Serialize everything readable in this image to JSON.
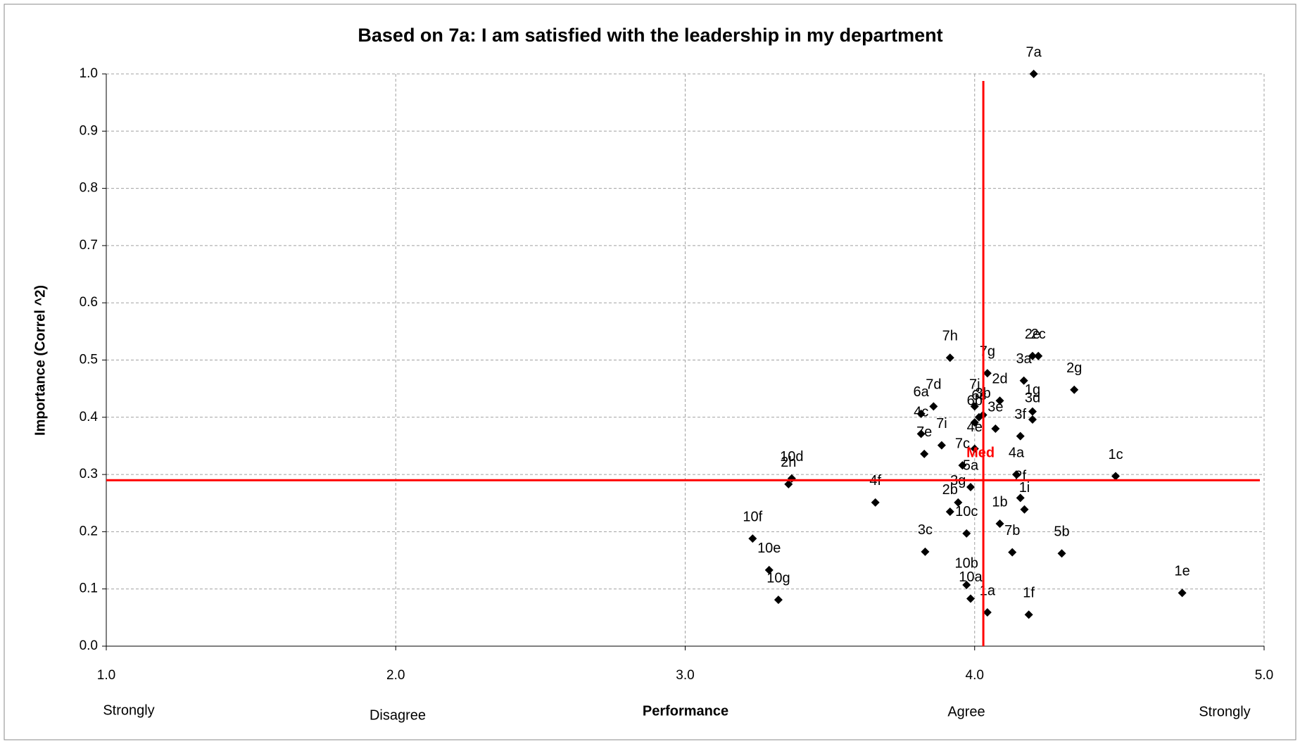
{
  "chart_data": {
    "type": "scatter",
    "title": "Based on 7a: I am satisfied with the leadership in my department",
    "y_label": "Importance (Correl ^2)",
    "x_label": "Performance",
    "x_scale_labels": [
      "Strongly",
      "Disagree",
      "Agree",
      "Strongly"
    ],
    "labels": [
      "7a",
      "7h",
      "2e",
      "2c",
      "7g",
      "3a",
      "2g",
      "7d",
      "6a",
      "7j",
      "2d",
      "1g",
      "3d",
      "6c",
      "3e",
      "3f",
      "3b",
      "4c",
      "7i",
      "6b",
      "7e",
      "7c",
      "4e",
      "4a",
      "1c",
      "2h",
      "10d",
      "4f",
      "5a",
      "3g",
      "2b",
      "10c",
      "2f",
      "1b",
      "1i",
      "7b",
      "3c",
      "5b",
      "10f",
      "10e",
      "10g",
      "10b",
      "10a",
      "1a",
      "1f",
      "1e"
    ],
    "x": [
      4.204,
      3.915,
      4.2,
      4.22,
      4.044,
      4.17,
      4.344,
      3.858,
      3.815,
      4.0,
      4.087,
      4.2,
      4.2,
      4.015,
      4.072,
      4.158,
      4.029,
      3.815,
      3.886,
      4.0,
      3.826,
      3.958,
      4.0,
      4.144,
      4.487,
      3.357,
      3.368,
      3.657,
      3.986,
      3.943,
      3.915,
      3.972,
      4.158,
      4.087,
      4.172,
      4.13,
      3.829,
      4.301,
      3.233,
      3.29,
      3.322,
      3.972,
      3.986,
      4.044,
      4.187,
      4.717
    ],
    "values": [
      1.0,
      0.504,
      0.507,
      0.507,
      0.477,
      0.464,
      0.448,
      0.419,
      0.406,
      0.419,
      0.429,
      0.41,
      0.396,
      0.4,
      0.38,
      0.367,
      0.404,
      0.371,
      0.351,
      0.391,
      0.336,
      0.316,
      0.345,
      0.3,
      0.297,
      0.283,
      0.293,
      0.251,
      0.278,
      0.251,
      0.235,
      0.197,
      0.259,
      0.214,
      0.239,
      0.164,
      0.165,
      0.162,
      0.188,
      0.133,
      0.081,
      0.107,
      0.083,
      0.059,
      0.055,
      0.093
    ],
    "color": "#000000",
    "median_x": 4.03,
    "median_y": 0.29,
    "median_label": "Med",
    "median_color": "#ff0000",
    "xlim": [
      1,
      5
    ],
    "ylim": [
      0,
      1
    ],
    "xticks": [
      {
        "value": 1,
        "label": "1.0"
      },
      {
        "value": 2,
        "label": "2.0"
      },
      {
        "value": 3,
        "label": "3.0"
      },
      {
        "value": 4,
        "label": "4.0"
      },
      {
        "value": 5,
        "label": "5.0"
      }
    ],
    "yticks": [
      {
        "value": 0,
        "label": "0.0"
      },
      0.1,
      0.2,
      0.3,
      0.4,
      0.5,
      0.6,
      0.7,
      0.8,
      0.9,
      {
        "value": 1,
        "label": "1.0"
      }
    ],
    "grid": true
  }
}
